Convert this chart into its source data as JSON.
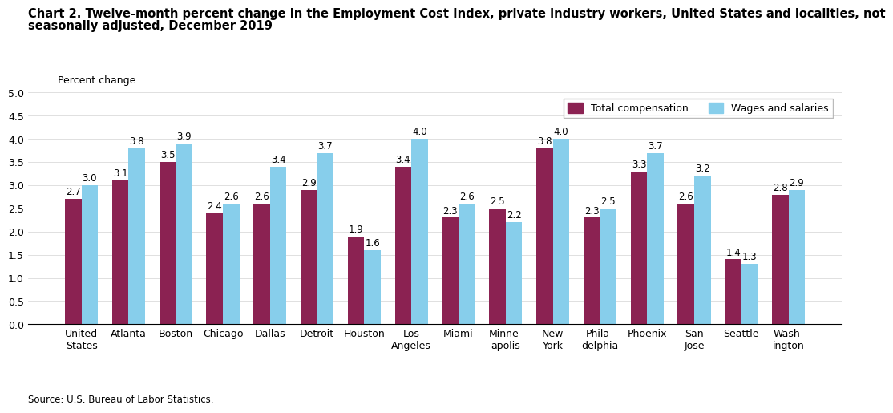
{
  "title_line1": "Chart 2. Twelve-month percent change in the Employment Cost Index, private industry workers, United States and localities, not",
  "title_line2": "seasonally adjusted, December 2019",
  "ylabel": "Percent change",
  "source": "Source: U.S. Bureau of Labor Statistics.",
  "categories": [
    "United\nStates",
    "Atlanta",
    "Boston",
    "Chicago",
    "Dallas",
    "Detroit",
    "Houston",
    "Los\nAngeles",
    "Miami",
    "Minne-\napolis",
    "New\nYork",
    "Phila-\ndelphia",
    "Phoenix",
    "San\nJose",
    "Seattle",
    "Wash-\nington"
  ],
  "total_compensation": [
    2.7,
    3.1,
    3.5,
    2.4,
    2.6,
    2.9,
    1.9,
    3.4,
    2.3,
    2.5,
    3.8,
    2.3,
    3.3,
    2.6,
    1.4,
    2.8
  ],
  "wages_and_salaries": [
    3.0,
    3.8,
    3.9,
    2.6,
    3.4,
    3.7,
    1.6,
    4.0,
    2.6,
    2.2,
    4.0,
    2.5,
    3.7,
    3.2,
    1.3,
    2.9
  ],
  "color_total": "#8B2252",
  "color_wages": "#87CEEB",
  "ylim": [
    0,
    5.0
  ],
  "yticks": [
    0.0,
    0.5,
    1.0,
    1.5,
    2.0,
    2.5,
    3.0,
    3.5,
    4.0,
    4.5,
    5.0
  ],
  "bar_width": 0.35,
  "legend_labels": [
    "Total compensation",
    "Wages and salaries"
  ],
  "title_fontsize": 10.5,
  "label_fontsize": 9,
  "tick_fontsize": 9,
  "value_fontsize": 8.5
}
